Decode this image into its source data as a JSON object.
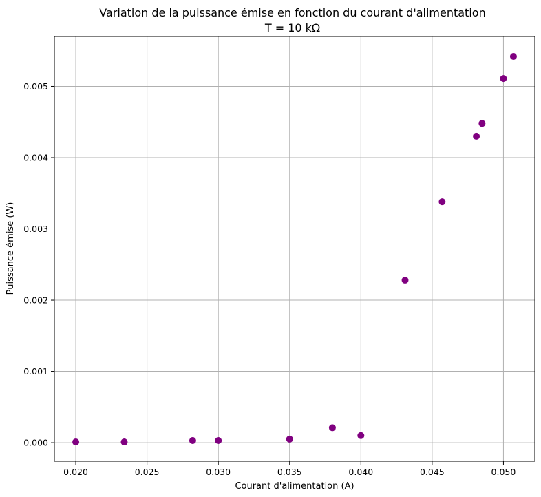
{
  "chart_data": {
    "type": "scatter",
    "title": "Variation de la puissance émise en fonction du courant d'alimentation",
    "subtitle": "T = 10 kΩ",
    "xlabel": "Courant d'alimentation (A)",
    "ylabel": "Puissance émise (W)",
    "xlim": [
      0.0185,
      0.0522
    ],
    "ylim": [
      -0.00026,
      0.0057
    ],
    "grid": true,
    "x_ticks": [
      0.02,
      0.025,
      0.03,
      0.035,
      0.04,
      0.045,
      0.05
    ],
    "x_tick_labels": [
      "0.020",
      "0.025",
      "0.030",
      "0.035",
      "0.040",
      "0.045",
      "0.050"
    ],
    "y_ticks": [
      0.0,
      0.001,
      0.002,
      0.003,
      0.004,
      0.005
    ],
    "y_tick_labels": [
      "0.000",
      "0.001",
      "0.002",
      "0.003",
      "0.004",
      "0.005"
    ],
    "series": [
      {
        "color": "#800080",
        "x": [
          0.02,
          0.0234,
          0.0282,
          0.03,
          0.035,
          0.038,
          0.04,
          0.0431,
          0.0457,
          0.0481,
          0.0485,
          0.05,
          0.0507
        ],
        "y": [
          1e-05,
          1e-05,
          3e-05,
          3e-05,
          5e-05,
          0.00021,
          0.0001,
          0.00228,
          0.00338,
          0.0043,
          0.00448,
          0.00511,
          0.00542
        ]
      }
    ]
  }
}
